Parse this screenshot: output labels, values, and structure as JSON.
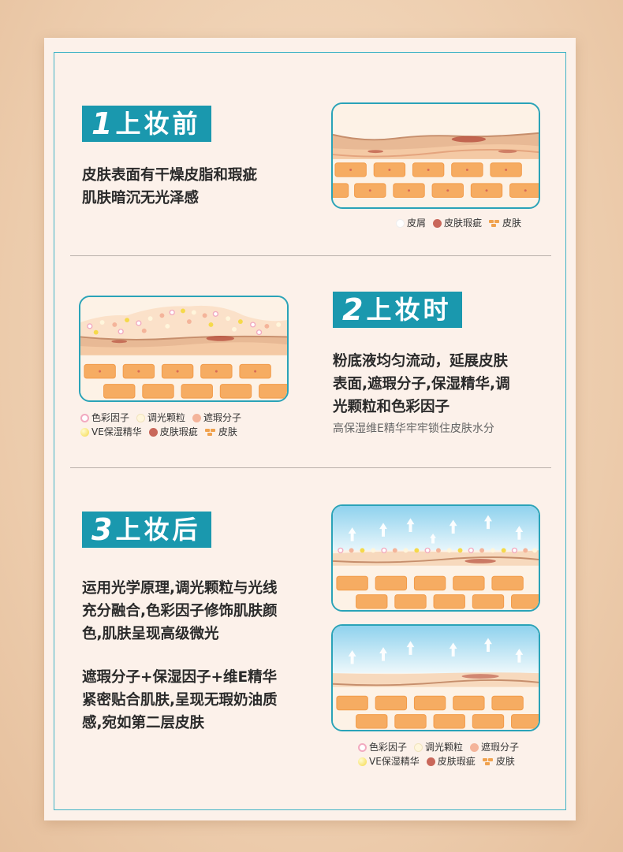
{
  "sections": [
    {
      "num": "1",
      "label": "上妆前",
      "desc_lines": [
        "皮肤表面有干燥皮脂和瑕疵",
        "肌肤暗沉无光泽感"
      ],
      "legend": [
        "皮屑",
        "皮肤瑕疵",
        "皮肤"
      ]
    },
    {
      "num": "2",
      "label": "上妆时",
      "desc_lines": [
        "粉底液均匀流动，延展皮肤",
        "表面,遮瑕分子,保湿精华,调",
        "光颗粒和色彩因子"
      ],
      "sub": "高保湿维E精华牢牢锁住皮肤水分",
      "legend_row1": [
        "色彩因子",
        "调光颗粒",
        "遮瑕分子"
      ],
      "legend_row2": [
        "VE保湿精华",
        "皮肤瑕疵",
        "皮肤"
      ]
    },
    {
      "num": "3",
      "label": "上妆后",
      "desc_lines": [
        "运用光学原理,调光颗粒与光线",
        "充分融合,色彩因子修饰肌肤颜",
        "色,肌肤呈现高级微光"
      ],
      "desc2_lines": [
        "遮瑕分子+保湿因子+维E精华",
        "紧密贴合肌肤,呈现无瑕奶油质",
        "感,宛如第二层皮肤"
      ],
      "legend_row1": [
        "色彩因子",
        "调光颗粒",
        "遮瑕分子"
      ],
      "legend_row2": [
        "VE保湿精华",
        "皮肤瑕疵",
        "皮肤"
      ]
    }
  ],
  "colors": {
    "accent": "#1a98ae",
    "border": "#42b3c6",
    "card": "#fcf1ea"
  }
}
